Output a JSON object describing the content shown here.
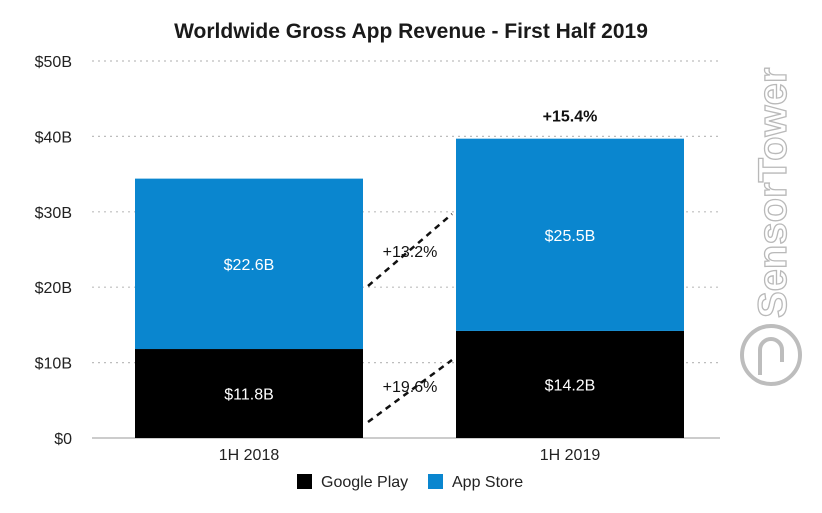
{
  "chart_data": {
    "type": "bar",
    "stacked": true,
    "title": "Worldwide Gross App Revenue - First Half 2019",
    "categories": [
      "1H 2018",
      "1H 2019"
    ],
    "series": [
      {
        "name": "Google Play",
        "values": [
          11.8,
          14.2
        ],
        "labels": [
          "$11.8B",
          "$14.2B"
        ],
        "color": "#000000"
      },
      {
        "name": "App Store",
        "values": [
          22.6,
          25.5
        ],
        "labels": [
          "$22.6B",
          "$25.5B"
        ],
        "color": "#0a86cf"
      }
    ],
    "ylim": [
      0,
      50
    ],
    "yticks": [
      0,
      10,
      20,
      30,
      40,
      50
    ],
    "ytick_labels": [
      "$0",
      "$10B",
      "$20B",
      "$30B",
      "$40B",
      "$50B"
    ],
    "grid": true,
    "growth_annotations": {
      "app_store": "+13.2%",
      "google_play": "+19.6%",
      "total": "+15.4%"
    },
    "legend_position": "bottom-center",
    "watermark": "SensorTower"
  }
}
